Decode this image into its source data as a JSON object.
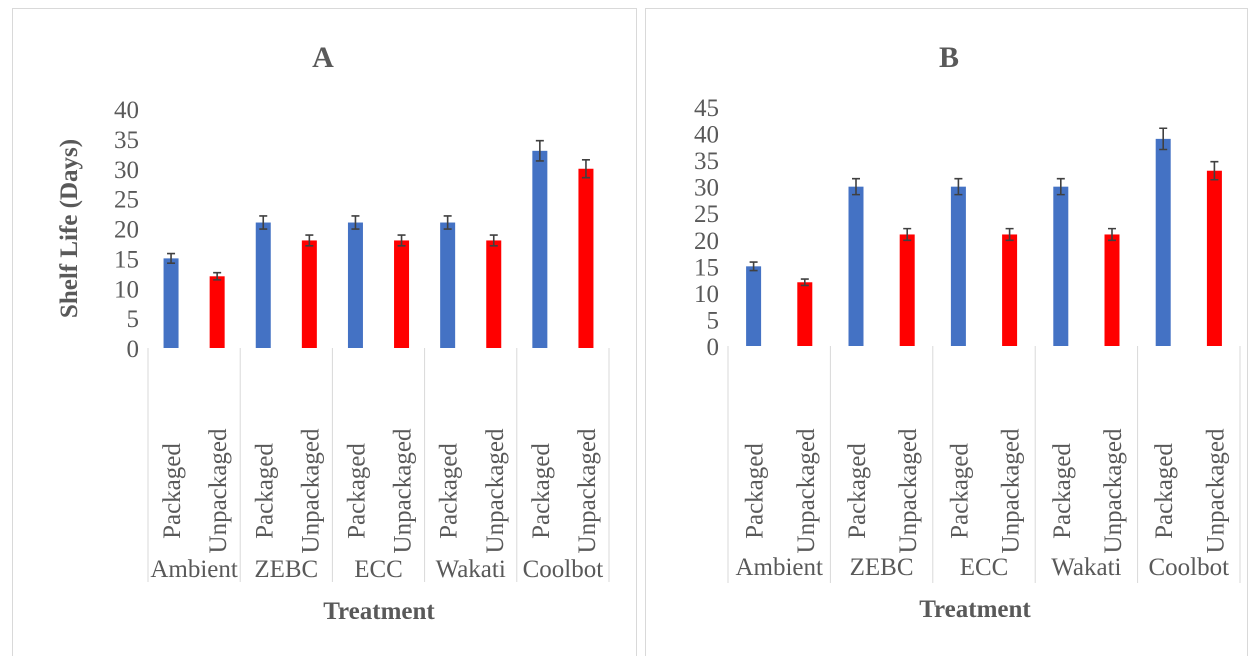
{
  "chart_data": [
    {
      "type": "bar",
      "title": "A",
      "xlabel": "Treatment",
      "ylabel": "Shelf Life (Days)",
      "ylim": [
        0,
        40
      ],
      "yticks": [
        0,
        5,
        10,
        15,
        20,
        25,
        30,
        35,
        40
      ],
      "groups": [
        "Ambient",
        "ZEBC",
        "ECC",
        "Wakati",
        "Coolbot"
      ],
      "categories": [
        "Packaged",
        "Unpackaged"
      ],
      "colors": {
        "Packaged": "#4472c4",
        "Unpackaged": "#ff0000"
      },
      "bars": [
        {
          "group": "Ambient",
          "category": "Packaged",
          "value": 15,
          "error": 0.8
        },
        {
          "group": "Ambient",
          "category": "Unpackaged",
          "value": 12,
          "error": 0.6
        },
        {
          "group": "ZEBC",
          "category": "Packaged",
          "value": 21,
          "error": 1.1
        },
        {
          "group": "ZEBC",
          "category": "Unpackaged",
          "value": 18,
          "error": 0.9
        },
        {
          "group": "ECC",
          "category": "Packaged",
          "value": 21,
          "error": 1.1
        },
        {
          "group": "ECC",
          "category": "Unpackaged",
          "value": 18,
          "error": 0.9
        },
        {
          "group": "Wakati",
          "category": "Packaged",
          "value": 21,
          "error": 1.1
        },
        {
          "group": "Wakati",
          "category": "Unpackaged",
          "value": 18,
          "error": 0.9
        },
        {
          "group": "Coolbot",
          "category": "Packaged",
          "value": 33,
          "error": 1.7
        },
        {
          "group": "Coolbot",
          "category": "Unpackaged",
          "value": 30,
          "error": 1.5
        }
      ]
    },
    {
      "type": "bar",
      "title": "B",
      "xlabel": "Treatment",
      "ylabel": "",
      "ylim": [
        0,
        45
      ],
      "yticks": [
        0,
        5,
        10,
        15,
        20,
        25,
        30,
        35,
        40,
        45
      ],
      "groups": [
        "Ambient",
        "ZEBC",
        "ECC",
        "Wakati",
        "Coolbot"
      ],
      "categories": [
        "Packaged",
        "Unpackaged"
      ],
      "colors": {
        "Packaged": "#4472c4",
        "Unpackaged": "#ff0000"
      },
      "bars": [
        {
          "group": "Ambient",
          "category": "Packaged",
          "value": 15,
          "error": 0.8
        },
        {
          "group": "Ambient",
          "category": "Unpackaged",
          "value": 12,
          "error": 0.6
        },
        {
          "group": "ZEBC",
          "category": "Packaged",
          "value": 30,
          "error": 1.5
        },
        {
          "group": "ZEBC",
          "category": "Unpackaged",
          "value": 21,
          "error": 1.1
        },
        {
          "group": "ECC",
          "category": "Packaged",
          "value": 30,
          "error": 1.5
        },
        {
          "group": "ECC",
          "category": "Unpackaged",
          "value": 21,
          "error": 1.1
        },
        {
          "group": "Wakati",
          "category": "Packaged",
          "value": 30,
          "error": 1.5
        },
        {
          "group": "Wakati",
          "category": "Unpackaged",
          "value": 21,
          "error": 1.1
        },
        {
          "group": "Coolbot",
          "category": "Packaged",
          "value": 39,
          "error": 2.0
        },
        {
          "group": "Coolbot",
          "category": "Unpackaged",
          "value": 33,
          "error": 1.7
        }
      ]
    }
  ]
}
